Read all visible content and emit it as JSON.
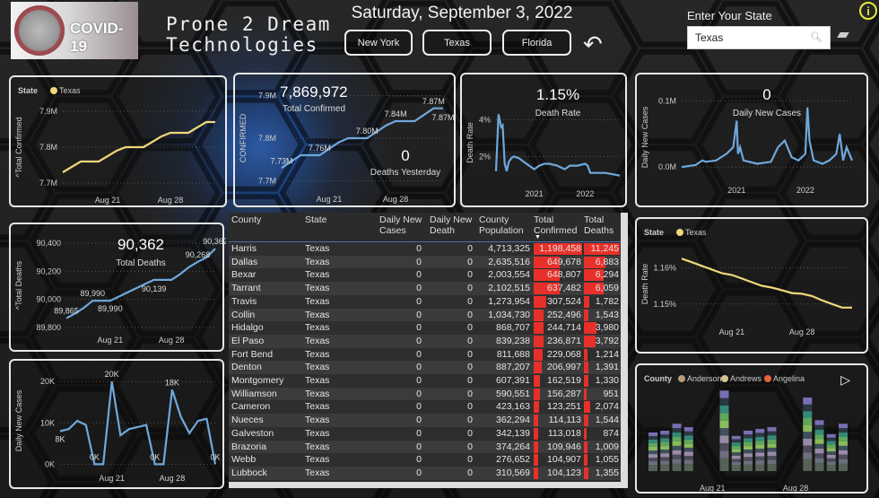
{
  "header": {
    "logo_text": "COVID-19",
    "company": [
      "Prone 2 Dream",
      "Technologies"
    ],
    "date": "Saturday, September 3, 2022",
    "state_buttons": [
      "New York",
      "Texas",
      "Florida"
    ],
    "state_label": "Enter Your State",
    "state_value": "Texas",
    "info_icon": "i"
  },
  "colors": {
    "accent": "#6fa8dc",
    "state_line": "#f0d77a",
    "bar": "#e8302a",
    "info": "#e8e83a"
  },
  "chart_data": [
    {
      "id": "c1",
      "type": "line",
      "legend_title": "State",
      "legend": [
        {
          "name": "Texas",
          "color": "#f0d77a"
        }
      ],
      "ylabel": "^Total Confirmed",
      "color": "#f0d77a",
      "x": [
        "2022-08-16",
        "2022-08-17",
        "2022-08-18",
        "2022-08-19",
        "2022-08-20",
        "2022-08-21",
        "2022-08-22",
        "2022-08-23",
        "2022-08-24",
        "2022-08-25",
        "2022-08-26",
        "2022-08-27",
        "2022-08-28",
        "2022-08-29",
        "2022-08-30",
        "2022-08-31",
        "2022-09-01",
        "2022-09-02"
      ],
      "y": [
        7.73,
        7.745,
        7.76,
        7.76,
        7.76,
        7.775,
        7.79,
        7.8,
        7.8,
        7.8,
        7.815,
        7.83,
        7.84,
        7.84,
        7.84,
        7.855,
        7.87,
        7.87
      ],
      "ylim": [
        7.68,
        7.92
      ],
      "yticks": [
        7.7,
        7.8,
        7.9
      ],
      "ytick_labels": [
        "7.7M",
        "7.8M",
        "7.9M"
      ],
      "xticks": [
        "2022-08-21",
        "2022-08-28"
      ],
      "xtick_labels": [
        "Aug 21",
        "Aug 28"
      ]
    },
    {
      "id": "c2",
      "type": "line",
      "ylabel": "CONFIRMED",
      "kpi": {
        "value": "7,869,972",
        "label": "Total Confirmed"
      },
      "kpi2": {
        "value": "0",
        "label": "Deaths Yesterday"
      },
      "color": "#6fa8dc",
      "x": [
        "2022-08-16",
        "2022-08-17",
        "2022-08-18",
        "2022-08-19",
        "2022-08-20",
        "2022-08-21",
        "2022-08-22",
        "2022-08-23",
        "2022-08-24",
        "2022-08-25",
        "2022-08-26",
        "2022-08-27",
        "2022-08-28",
        "2022-08-29",
        "2022-08-30",
        "2022-08-31",
        "2022-09-01",
        "2022-09-02"
      ],
      "y": [
        7.73,
        7.745,
        7.76,
        7.76,
        7.76,
        7.775,
        7.79,
        7.8,
        7.8,
        7.8,
        7.815,
        7.83,
        7.84,
        7.84,
        7.84,
        7.855,
        7.87,
        7.87
      ],
      "data_labels": [
        {
          "i": 0,
          "text": "7.73M"
        },
        {
          "i": 4,
          "text": "7.76M"
        },
        {
          "i": 9,
          "text": "7.80M"
        },
        {
          "i": 12,
          "text": "7.84M"
        },
        {
          "i": 16,
          "text": "7.87M"
        },
        {
          "i": 17,
          "text": "7.87M"
        }
      ],
      "ylim": [
        7.68,
        7.92
      ],
      "yticks": [
        7.7,
        7.8,
        7.9
      ],
      "ytick_labels": [
        "7.7M",
        "7.8M",
        "7.9M"
      ],
      "xticks": [
        "2022-08-21",
        "2022-08-28"
      ],
      "xtick_labels": [
        "Aug 21",
        "Aug 28"
      ]
    },
    {
      "id": "c3",
      "type": "line",
      "ylabel": "Death Rate",
      "kpi": {
        "value": "1.15%",
        "label": "Death Rate"
      },
      "color": "#6fa8dc",
      "x": [
        2020.25,
        2020.27,
        2020.3,
        2020.33,
        2020.35,
        2020.38,
        2020.42,
        2020.46,
        2020.5,
        2020.55,
        2020.6,
        2020.7,
        2020.8,
        2020.9,
        2021.0,
        2021.1,
        2021.2,
        2021.3,
        2021.45,
        2021.6,
        2021.7,
        2021.85,
        2022.0,
        2022.05,
        2022.1,
        2022.2,
        2022.4,
        2022.6,
        2022.68
      ],
      "y": [
        1.2,
        2.4,
        4.3,
        3.9,
        3.6,
        3.7,
        1.6,
        1.2,
        1.7,
        1.9,
        2.0,
        1.9,
        1.7,
        1.5,
        1.3,
        1.5,
        1.6,
        1.6,
        1.5,
        1.3,
        1.5,
        1.5,
        1.6,
        1.5,
        1.1,
        1.1,
        1.1,
        1.0,
        0.95
      ],
      "ylim": [
        0.5,
        5
      ],
      "yticks": [
        2,
        4
      ],
      "ytick_labels": [
        "2%",
        "4%"
      ],
      "xticks": [
        2021,
        2022
      ],
      "xtick_labels": [
        "2021",
        "2022"
      ]
    },
    {
      "id": "c4",
      "type": "line",
      "ylabel": "Daily New Cases",
      "kpi": {
        "value": "0",
        "label": "Daily New Cases"
      },
      "color": "#6fa8dc",
      "x": [
        2020.2,
        2020.4,
        2020.5,
        2020.55,
        2020.7,
        2020.85,
        2020.95,
        2021.0,
        2021.02,
        2021.05,
        2021.1,
        2021.3,
        2021.5,
        2021.6,
        2021.7,
        2021.8,
        2021.9,
        2022.0,
        2022.03,
        2022.06,
        2022.12,
        2022.25,
        2022.35,
        2022.45,
        2022.5,
        2022.55,
        2022.6,
        2022.68
      ],
      "y": [
        0.0,
        0.003,
        0.01,
        0.008,
        0.01,
        0.02,
        0.03,
        0.07,
        0.02,
        0.03,
        0.01,
        0.005,
        0.008,
        0.03,
        0.04,
        0.015,
        0.01,
        0.02,
        0.09,
        0.04,
        0.01,
        0.005,
        0.01,
        0.02,
        0.05,
        0.01,
        0.03,
        0.01
      ],
      "ylim": [
        -0.02,
        0.11
      ],
      "yticks": [
        0,
        0.1
      ],
      "ytick_labels": [
        "0.0M",
        "0.1M"
      ],
      "xticks": [
        2021,
        2022
      ],
      "xtick_labels": [
        "2021",
        "2022"
      ]
    },
    {
      "id": "c5",
      "type": "line",
      "ylabel": "^Total Deaths",
      "kpi": {
        "value": "90,362",
        "label": "Total Deaths"
      },
      "color": "#6fa8dc",
      "x": [
        "2022-08-16",
        "2022-08-17",
        "2022-08-18",
        "2022-08-19",
        "2022-08-20",
        "2022-08-21",
        "2022-08-22",
        "2022-08-23",
        "2022-08-24",
        "2022-08-25",
        "2022-08-26",
        "2022-08-27",
        "2022-08-28",
        "2022-08-29",
        "2022-08-30",
        "2022-08-31",
        "2022-09-01",
        "2022-09-02"
      ],
      "y": [
        89865,
        89900,
        89940,
        89990,
        89990,
        89990,
        90020,
        90050,
        90080,
        90110,
        90139,
        90139,
        90139,
        90180,
        90230,
        90268,
        90300,
        90362
      ],
      "data_labels": [
        {
          "i": 0,
          "text": "89,865",
          "pos": "below"
        },
        {
          "i": 3,
          "text": "89,990"
        },
        {
          "i": 5,
          "text": "89,990",
          "pos": "below"
        },
        {
          "i": 10,
          "text": "90,139"
        },
        {
          "i": 15,
          "text": "90,268"
        },
        {
          "i": 17,
          "text": "90,362"
        }
      ],
      "ylim": [
        89780,
        90420
      ],
      "yticks": [
        89800,
        90000,
        90200,
        90400
      ],
      "ytick_labels": [
        "89,800",
        "90,000",
        "90,200",
        "90,400"
      ],
      "xticks": [
        "2022-08-21",
        "2022-08-28"
      ],
      "xtick_labels": [
        "Aug 21",
        "Aug 28"
      ]
    },
    {
      "id": "c6",
      "type": "line",
      "ylabel": "Daily New Cases",
      "color": "#6fa8dc",
      "x": [
        "2022-08-15",
        "2022-08-16",
        "2022-08-17",
        "2022-08-18",
        "2022-08-19",
        "2022-08-20",
        "2022-08-21",
        "2022-08-22",
        "2022-08-23",
        "2022-08-24",
        "2022-08-25",
        "2022-08-26",
        "2022-08-27",
        "2022-08-28",
        "2022-08-29",
        "2022-08-30",
        "2022-08-31",
        "2022-09-01",
        "2022-09-02"
      ],
      "y": [
        8,
        8.5,
        10.5,
        9.5,
        0,
        0,
        20,
        7,
        8.5,
        9,
        9.5,
        0,
        0,
        18,
        11.5,
        7.5,
        10.5,
        11,
        0
      ],
      "data_labels": [
        {
          "i": 0,
          "text": "8K",
          "pos": "below"
        },
        {
          "i": 4,
          "text": "0K"
        },
        {
          "i": 6,
          "text": "20K"
        },
        {
          "i": 11,
          "text": "0K"
        },
        {
          "i": 13,
          "text": "18K"
        },
        {
          "i": 18,
          "text": "0K"
        }
      ],
      "ylim": [
        -1,
        22
      ],
      "yticks": [
        0,
        10,
        20
      ],
      "ytick_labels": [
        "0K",
        "10K",
        "20K"
      ],
      "xticks": [
        "2022-08-21",
        "2022-08-28"
      ],
      "xtick_labels": [
        "Aug 21",
        "Aug 28"
      ]
    },
    {
      "id": "c7",
      "type": "line",
      "legend_title": "State",
      "legend": [
        {
          "name": "Texas",
          "color": "#f0d77a"
        }
      ],
      "ylabel": "Death Rate",
      "color": "#f0d77a",
      "x": [
        "2022-08-16",
        "2022-08-17",
        "2022-08-18",
        "2022-08-19",
        "2022-08-20",
        "2022-08-21",
        "2022-08-22",
        "2022-08-23",
        "2022-08-24",
        "2022-08-25",
        "2022-08-26",
        "2022-08-27",
        "2022-08-28",
        "2022-08-29",
        "2022-08-30",
        "2022-08-31",
        "2022-09-01",
        "2022-09-02"
      ],
      "y": [
        1.1625,
        1.1615,
        1.1605,
        1.1595,
        1.1585,
        1.158,
        1.157,
        1.156,
        1.155,
        1.1545,
        1.1538,
        1.153,
        1.1528,
        1.1522,
        1.151,
        1.15,
        1.149,
        1.149
      ],
      "ylim": [
        1.145,
        1.166
      ],
      "yticks": [
        1.15,
        1.16
      ],
      "ytick_labels": [
        "1.15%",
        "1.16%"
      ],
      "xticks": [
        "2022-08-21",
        "2022-08-28"
      ],
      "xtick_labels": [
        "Aug 21",
        "Aug 28"
      ]
    },
    {
      "id": "c8",
      "type": "area",
      "legend_title": "County",
      "legend": [
        {
          "name": "Anderson",
          "color": "#b89a78"
        },
        {
          "name": "Andrews",
          "color": "#d8c48e"
        },
        {
          "name": "Angelina",
          "color": "#e8603a"
        }
      ],
      "x": [
        "2022-08-16",
        "2022-08-17",
        "2022-08-18",
        "2022-08-19",
        "2022-08-20",
        "2022-08-21",
        "2022-08-22",
        "2022-08-23",
        "2022-08-24",
        "2022-08-25",
        "2022-08-26",
        "2022-08-27",
        "2022-08-28",
        "2022-08-29",
        "2022-08-30",
        "2022-08-31",
        "2022-09-01"
      ],
      "totals": [
        8,
        8.5,
        10.5,
        9.5,
        0,
        0,
        20,
        7,
        8.5,
        9,
        9.5,
        0,
        0,
        18,
        11.5,
        7.5,
        10.5
      ],
      "xticks": [
        "2022-08-21",
        "2022-08-28"
      ],
      "xtick_labels": [
        "Aug 21",
        "Aug 28"
      ]
    }
  ],
  "table": {
    "columns": [
      "County",
      "State",
      "Daily New Cases",
      "Daily New Death",
      "County Population",
      "Total Confirmed",
      "Total Deaths"
    ],
    "rows": [
      [
        "Harris",
        "Texas",
        "0",
        "0",
        "4,713,325",
        "1,198,458",
        "11,245"
      ],
      [
        "Dallas",
        "Texas",
        "0",
        "0",
        "2,635,516",
        "649,678",
        "6,883"
      ],
      [
        "Bexar",
        "Texas",
        "0",
        "0",
        "2,003,554",
        "648,807",
        "6,294"
      ],
      [
        "Tarrant",
        "Texas",
        "0",
        "0",
        "2,102,515",
        "637,482",
        "6,059"
      ],
      [
        "Travis",
        "Texas",
        "0",
        "0",
        "1,273,954",
        "307,524",
        "1,782"
      ],
      [
        "Collin",
        "Texas",
        "0",
        "0",
        "1,034,730",
        "252,496",
        "1,543"
      ],
      [
        "Hidalgo",
        "Texas",
        "0",
        "0",
        "868,707",
        "244,714",
        "3,980"
      ],
      [
        "El Paso",
        "Texas",
        "0",
        "0",
        "839,238",
        "236,871",
        "3,792"
      ],
      [
        "Fort Bend",
        "Texas",
        "0",
        "0",
        "811,688",
        "229,068",
        "1,214"
      ],
      [
        "Denton",
        "Texas",
        "0",
        "0",
        "887,207",
        "206,997",
        "1,391"
      ],
      [
        "Montgomery",
        "Texas",
        "0",
        "0",
        "607,391",
        "162,519",
        "1,330"
      ],
      [
        "Williamson",
        "Texas",
        "0",
        "0",
        "590,551",
        "156,287",
        "951"
      ],
      [
        "Cameron",
        "Texas",
        "0",
        "0",
        "423,163",
        "123,251",
        "2,074"
      ],
      [
        "Nueces",
        "Texas",
        "0",
        "0",
        "362,294",
        "114,113",
        "1,544"
      ],
      [
        "Galveston",
        "Texas",
        "0",
        "0",
        "342,139",
        "113,018",
        "874"
      ],
      [
        "Brazoria",
        "Texas",
        "0",
        "0",
        "374,264",
        "109,946",
        "1,009"
      ],
      [
        "Webb",
        "Texas",
        "0",
        "0",
        "276,652",
        "104,907",
        "1,055"
      ],
      [
        "Lubbock",
        "Texas",
        "0",
        "0",
        "310,569",
        "104,123",
        "1,355"
      ]
    ]
  }
}
